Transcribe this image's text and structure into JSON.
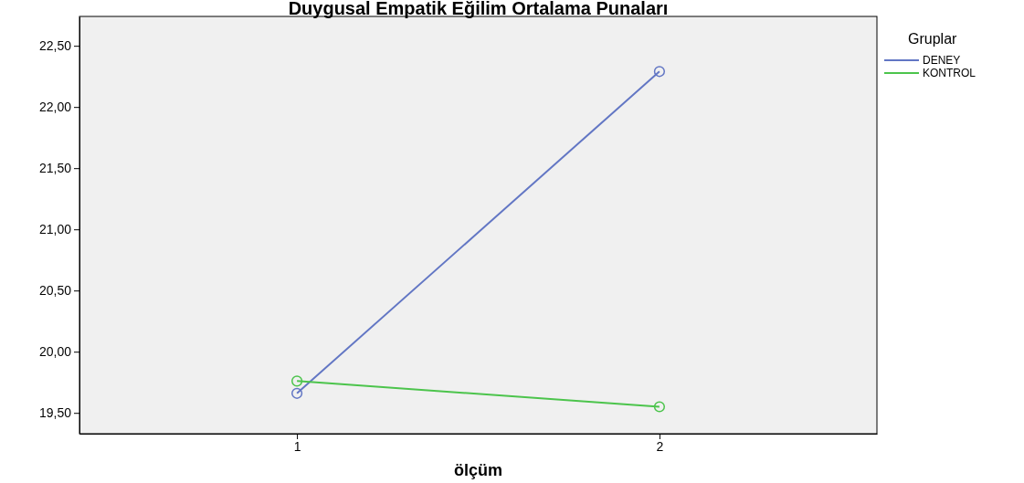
{
  "chart_data": {
    "type": "line",
    "title": "Duygusal Empatik Eğilim Ortalama Punaları",
    "xlabel": "ölçüm",
    "legend_title": "Gruplar",
    "categories": [
      "1",
      "2"
    ],
    "series": [
      {
        "name": "DENEY",
        "color": "#6276c4",
        "values": [
          19.66,
          22.29
        ]
      },
      {
        "name": "KONTROL",
        "color": "#4cc44c",
        "values": [
          19.76,
          19.55
        ]
      }
    ],
    "ylim": [
      19.33,
      22.74
    ],
    "yticks": [
      {
        "value": 19.5,
        "label": "19,50"
      },
      {
        "value": 20,
        "label": "20,00"
      },
      {
        "value": 20.5,
        "label": "20,50"
      },
      {
        "value": 21,
        "label": "21,00"
      },
      {
        "value": 21.5,
        "label": "21,50"
      },
      {
        "value": 22,
        "label": "22,00"
      },
      {
        "value": 22.5,
        "label": "22,50"
      }
    ],
    "marker": "circle",
    "line_style": "solid",
    "legend": "top right",
    "grid": false
  }
}
